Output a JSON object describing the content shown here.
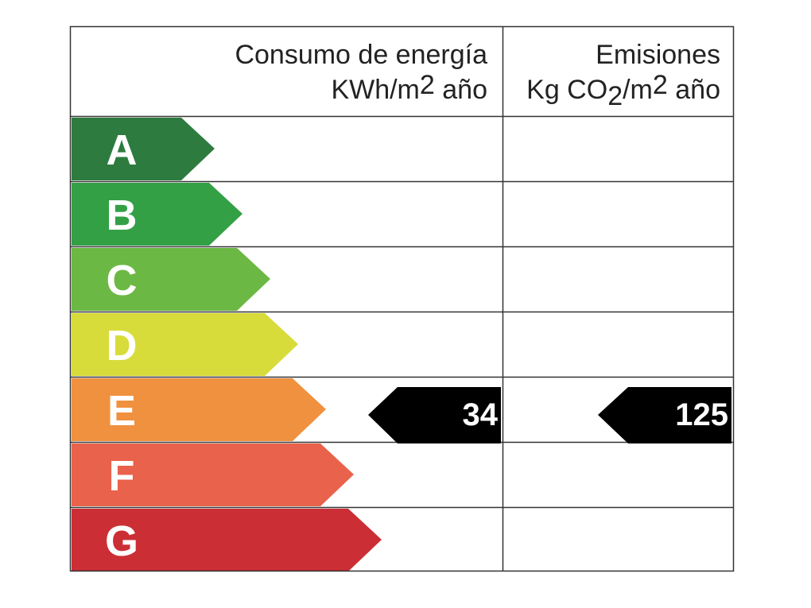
{
  "header": {
    "energy": {
      "line1": "Consumo de energía",
      "unit": "KWh/m",
      "unit_sup": "2",
      "unit_end": " año"
    },
    "emissions": {
      "line1": "Emisiones",
      "unit": "Kg CO",
      "unit_sub": "2",
      "unit_mid": "/m",
      "unit_sup": "2",
      "unit_end": " año"
    }
  },
  "rows": [
    {
      "letter": "A",
      "color": "#2e7b3f"
    },
    {
      "letter": "B",
      "color": "#34a046"
    },
    {
      "letter": "C",
      "color": "#6cb844"
    },
    {
      "letter": "D",
      "color": "#d8dc3b"
    },
    {
      "letter": "E",
      "color": "#f0913f"
    },
    {
      "letter": "F",
      "color": "#e9624b"
    },
    {
      "letter": "G",
      "color": "#cb2f35"
    }
  ],
  "energy_value": "34",
  "emissions_value": "125"
}
